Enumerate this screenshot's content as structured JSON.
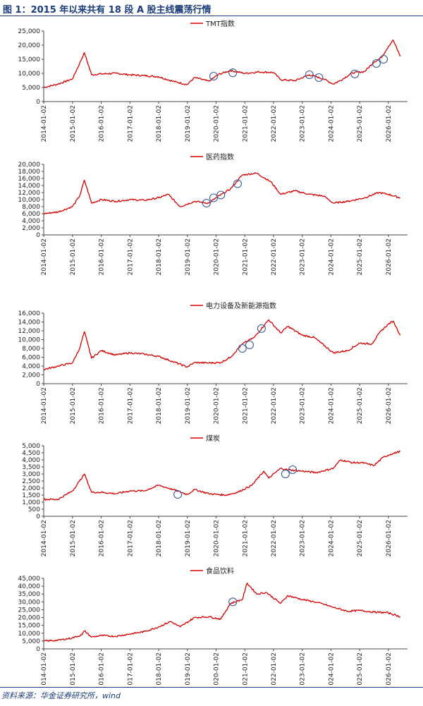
{
  "header": {
    "title": "图 1：2015 年以来共有 18 段 A 股主线震荡行情"
  },
  "footer": {
    "source": "资料来源：华金证券研究所，wind"
  },
  "colors": {
    "series": "#d40000",
    "circle": "#3a5a99",
    "axis": "#444444",
    "title": "#1a3c7a"
  },
  "x_ticks": [
    "2014-01-02",
    "2015-01-02",
    "2016-01-02",
    "2017-01-02",
    "2018-01-02",
    "2019-01-02",
    "2020-01-02",
    "2021-01-02",
    "2022-01-02",
    "2023-01-02",
    "2024-01-02",
    "2025-01-02",
    "2026-01-02"
  ],
  "chart_data": [
    {
      "type": "line",
      "legend": "TMT指数",
      "ylim": [
        0,
        25000
      ],
      "yticks": [
        "0",
        "5,000",
        "10,000",
        "15,000",
        "20,000",
        "25,000"
      ],
      "x": [
        "2014-01",
        "2014-07",
        "2015-01",
        "2015-04",
        "2015-06",
        "2015-09",
        "2016-01",
        "2016-07",
        "2017-01",
        "2017-07",
        "2018-01",
        "2018-07",
        "2019-01",
        "2019-04",
        "2019-10",
        "2020-02",
        "2020-07",
        "2021-01",
        "2021-07",
        "2022-01",
        "2022-04",
        "2022-10",
        "2023-04",
        "2023-10",
        "2024-02",
        "2024-05",
        "2024-10",
        "2025-03",
        "2025-07",
        "2025-10",
        "2026-01",
        "2026-03",
        "2026-06"
      ],
      "y": [
        5000,
        6200,
        8000,
        13500,
        17300,
        9500,
        9800,
        10000,
        9500,
        9200,
        8800,
        7200,
        6000,
        8500,
        7200,
        9600,
        11000,
        10000,
        10500,
        10300,
        7800,
        7400,
        9500,
        8000,
        6200,
        7500,
        10200,
        10600,
        14000,
        15500,
        19500,
        21800,
        16000
      ],
      "highlights": [
        {
          "x": "2019-12",
          "y": 9000
        },
        {
          "x": "2020-08",
          "y": 10200
        },
        {
          "x": "2023-04",
          "y": 9500
        },
        {
          "x": "2023-08",
          "y": 8500
        },
        {
          "x": "2024-11",
          "y": 9800
        },
        {
          "x": "2025-08",
          "y": 13500
        },
        {
          "x": "2025-11",
          "y": 15000
        }
      ]
    },
    {
      "type": "line",
      "legend": "医药指数",
      "ylim": [
        0,
        20000
      ],
      "yticks": [
        "0",
        "2,000",
        "4,000",
        "6,000",
        "8,000",
        "10,000",
        "12,000",
        "14,000",
        "16,000",
        "18,000",
        "20,000"
      ],
      "x": [
        "2014-01",
        "2014-07",
        "2015-01",
        "2015-04",
        "2015-06",
        "2015-09",
        "2016-01",
        "2016-07",
        "2017-01",
        "2017-07",
        "2018-01",
        "2018-05",
        "2018-10",
        "2019-04",
        "2019-10",
        "2020-01",
        "2020-07",
        "2020-12",
        "2021-06",
        "2021-12",
        "2022-04",
        "2022-10",
        "2023-04",
        "2023-10",
        "2024-02",
        "2024-08",
        "2025-03",
        "2025-09",
        "2026-01",
        "2026-06"
      ],
      "y": [
        6000,
        6500,
        8000,
        11000,
        15500,
        9000,
        10000,
        9500,
        10000,
        9800,
        10500,
        11500,
        8000,
        9500,
        9000,
        10500,
        13000,
        17000,
        17500,
        15000,
        11500,
        12500,
        11500,
        11000,
        9000,
        9500,
        10500,
        12000,
        11500,
        10500
      ],
      "highlights": [
        {
          "x": "2019-09",
          "y": 9000
        },
        {
          "x": "2019-12",
          "y": 10500
        },
        {
          "x": "2020-03",
          "y": 11300
        },
        {
          "x": "2020-10",
          "y": 14500
        }
      ]
    },
    {
      "type": "line",
      "legend": "电力设备及新能源指数",
      "ylim": [
        0,
        16000
      ],
      "yticks": [
        "0",
        "2,000",
        "4,000",
        "6,000",
        "8,000",
        "10,000",
        "12,000",
        "14,000",
        "16,000"
      ],
      "x": [
        "2014-01",
        "2014-07",
        "2015-01",
        "2015-04",
        "2015-06",
        "2015-09",
        "2016-01",
        "2016-07",
        "2017-01",
        "2017-07",
        "2018-01",
        "2018-07",
        "2019-01",
        "2019-04",
        "2019-10",
        "2020-03",
        "2020-07",
        "2020-12",
        "2021-05",
        "2021-11",
        "2022-04",
        "2022-07",
        "2023-01",
        "2023-06",
        "2024-02",
        "2024-08",
        "2025-01",
        "2025-06",
        "2025-10",
        "2026-01",
        "2026-03",
        "2026-06"
      ],
      "y": [
        3200,
        4000,
        4700,
        8000,
        11800,
        5800,
        7500,
        6500,
        7000,
        6700,
        6200,
        5000,
        3800,
        4800,
        4700,
        4800,
        6000,
        9000,
        10500,
        14500,
        11500,
        13000,
        11000,
        10500,
        7000,
        7500,
        9200,
        9000,
        12000,
        13500,
        14200,
        11000
      ],
      "highlights": [
        {
          "x": "2020-12",
          "y": 8000
        },
        {
          "x": "2021-03",
          "y": 8800
        },
        {
          "x": "2021-08",
          "y": 12500
        }
      ]
    },
    {
      "type": "line",
      "legend": "煤炭",
      "ylim": [
        0,
        5000
      ],
      "yticks": [
        "0",
        "500",
        "1,000",
        "1,500",
        "2,000",
        "2,500",
        "3,000",
        "3,500",
        "4,000",
        "4,500",
        "5,000"
      ],
      "x": [
        "2014-01",
        "2014-07",
        "2015-01",
        "2015-04",
        "2015-06",
        "2015-09",
        "2016-01",
        "2016-07",
        "2017-01",
        "2017-07",
        "2018-01",
        "2018-07",
        "2019-01",
        "2019-04",
        "2019-10",
        "2020-05",
        "2020-10",
        "2021-04",
        "2021-09",
        "2021-11",
        "2022-04",
        "2022-07",
        "2023-01",
        "2023-07",
        "2024-02",
        "2024-05",
        "2024-10",
        "2025-02",
        "2025-07",
        "2025-11",
        "2026-02",
        "2026-06"
      ],
      "y": [
        1200,
        1200,
        1800,
        2500,
        3000,
        1700,
        1700,
        1600,
        1800,
        1800,
        2200,
        1900,
        1550,
        1900,
        1600,
        1500,
        1700,
        2200,
        3200,
        2700,
        3400,
        3300,
        3200,
        3100,
        3400,
        4000,
        3800,
        3800,
        3600,
        4200,
        4400,
        4600
      ],
      "highlights": [
        {
          "x": "2018-09",
          "y": 1550
        },
        {
          "x": "2022-06",
          "y": 3000
        },
        {
          "x": "2022-09",
          "y": 3300
        }
      ]
    },
    {
      "type": "line",
      "legend": "食品饮料",
      "ylim": [
        0,
        45000
      ],
      "yticks": [
        "0",
        "5,000",
        "10,000",
        "15,000",
        "20,000",
        "25,000",
        "30,000",
        "35,000",
        "40,000",
        "45,000"
      ],
      "x": [
        "2014-01",
        "2014-07",
        "2015-01",
        "2015-05",
        "2015-06",
        "2015-09",
        "2016-01",
        "2016-07",
        "2017-01",
        "2017-07",
        "2018-01",
        "2018-06",
        "2018-10",
        "2019-04",
        "2019-10",
        "2020-03",
        "2020-07",
        "2020-12",
        "2021-02",
        "2021-06",
        "2021-10",
        "2022-04",
        "2022-07",
        "2023-01",
        "2023-06",
        "2023-10",
        "2024-02",
        "2024-08",
        "2025-01",
        "2025-07",
        "2026-01",
        "2026-06"
      ],
      "y": [
        5000,
        5500,
        7000,
        9000,
        11500,
        7500,
        8500,
        8000,
        9500,
        11000,
        14000,
        17500,
        14000,
        20000,
        20500,
        19000,
        29000,
        31500,
        42000,
        35000,
        36000,
        29000,
        34000,
        31500,
        30000,
        28500,
        26500,
        24000,
        24500,
        23500,
        23000,
        20500
      ],
      "highlights": [
        {
          "x": "2020-08",
          "y": 30000
        }
      ]
    }
  ]
}
